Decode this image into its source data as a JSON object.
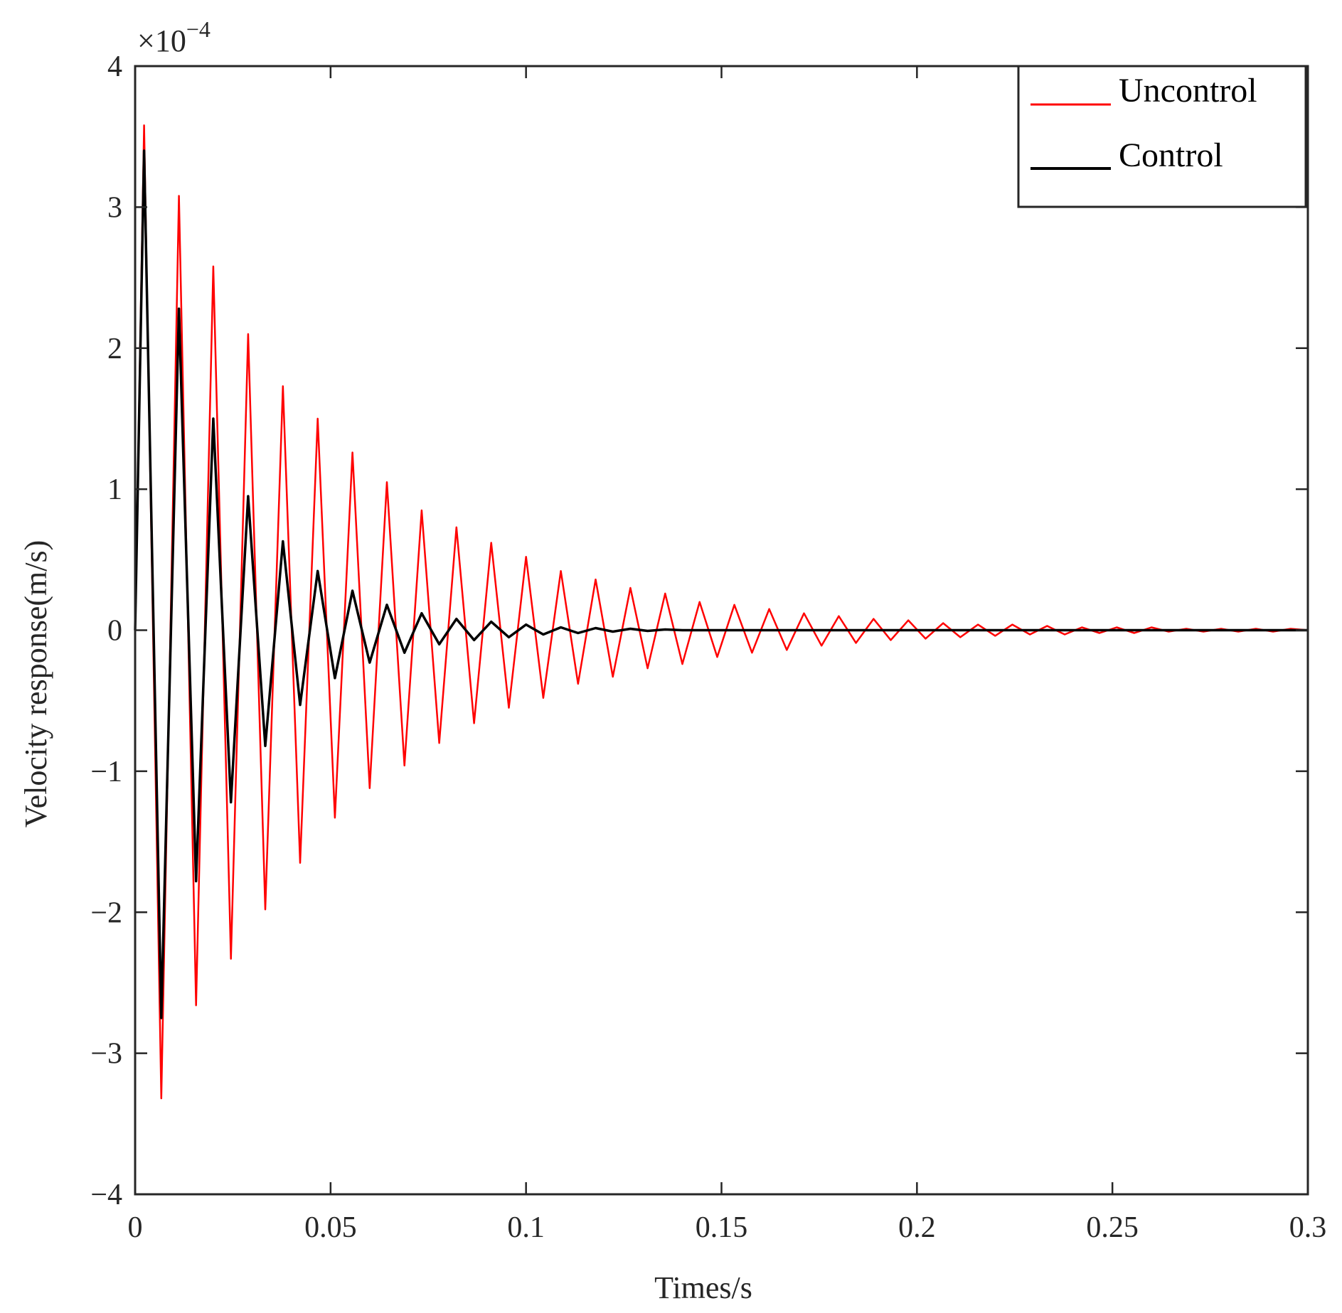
{
  "chart_data": {
    "type": "line",
    "xlabel": "Times/s",
    "ylabel": "Velocity response(m/s)",
    "xlim": [
      0,
      0.3
    ],
    "ylim": [
      -4,
      4
    ],
    "y_scale_factor_label": "×10",
    "y_scale_factor_exponent": "−4",
    "x_ticks": [
      "0",
      "0.05",
      "0.1",
      "0.15",
      "0.2",
      "0.25",
      "0.3"
    ],
    "x_tick_values": [
      0,
      0.05,
      0.1,
      0.15,
      0.2,
      0.25,
      0.3
    ],
    "y_ticks": [
      "−4",
      "−3",
      "−2",
      "−1",
      "0",
      "1",
      "2",
      "3",
      "4"
    ],
    "y_tick_values": [
      -4,
      -3,
      -2,
      -1,
      0,
      1,
      2,
      3,
      4
    ],
    "grid": false,
    "legend_position": "top-right",
    "colors": {
      "uncontrol": "#ff0000",
      "control": "#000000",
      "axes": "#262626"
    },
    "series": [
      {
        "name": "Uncontrol",
        "color": "#ff0000",
        "x": [
          0,
          0.0023,
          0.0067,
          0.0112,
          0.0156,
          0.02,
          0.0245,
          0.0289,
          0.0333,
          0.0378,
          0.0422,
          0.0467,
          0.0511,
          0.0556,
          0.06,
          0.0644,
          0.0689,
          0.0733,
          0.0778,
          0.0822,
          0.0867,
          0.0911,
          0.0956,
          0.1,
          0.1044,
          0.1089,
          0.1133,
          0.1178,
          0.1222,
          0.1267,
          0.1311,
          0.1356,
          0.14,
          0.1444,
          0.1489,
          0.1533,
          0.1578,
          0.1622,
          0.1667,
          0.1711,
          0.1756,
          0.18,
          0.1844,
          0.1889,
          0.1933,
          0.1978,
          0.2022,
          0.2067,
          0.2111,
          0.2156,
          0.22,
          0.2244,
          0.2289,
          0.2333,
          0.2378,
          0.2422,
          0.2467,
          0.2511,
          0.2556,
          0.26,
          0.2644,
          0.2689,
          0.2733,
          0.2778,
          0.2822,
          0.2867,
          0.2911,
          0.2956,
          0.3
        ],
        "y": [
          0,
          3.58,
          -3.32,
          3.08,
          -2.66,
          2.58,
          -2.33,
          2.1,
          -1.98,
          1.73,
          -1.65,
          1.5,
          -1.33,
          1.26,
          -1.12,
          1.05,
          -0.96,
          0.85,
          -0.8,
          0.73,
          -0.66,
          0.62,
          -0.55,
          0.52,
          -0.48,
          0.42,
          -0.38,
          0.36,
          -0.33,
          0.3,
          -0.27,
          0.26,
          -0.24,
          0.2,
          -0.19,
          0.18,
          -0.16,
          0.15,
          -0.14,
          0.12,
          -0.11,
          0.1,
          -0.09,
          0.08,
          -0.07,
          0.07,
          -0.06,
          0.05,
          -0.05,
          0.04,
          -0.04,
          0.04,
          -0.03,
          0.03,
          -0.03,
          0.02,
          -0.02,
          0.02,
          -0.02,
          0.02,
          -0.01,
          0.01,
          -0.01,
          0.01,
          -0.01,
          0.01,
          -0.01,
          0.01,
          0
        ]
      },
      {
        "name": "Control",
        "color": "#000000",
        "x": [
          0,
          0.0023,
          0.0067,
          0.0112,
          0.0156,
          0.02,
          0.0245,
          0.0289,
          0.0333,
          0.0378,
          0.0422,
          0.0467,
          0.0511,
          0.0556,
          0.06,
          0.0644,
          0.0689,
          0.0733,
          0.0778,
          0.0822,
          0.0867,
          0.0911,
          0.0956,
          0.1,
          0.1044,
          0.1089,
          0.1133,
          0.1178,
          0.1222,
          0.1267,
          0.1311,
          0.1356,
          0.14,
          0.15,
          0.2,
          0.25,
          0.3
        ],
        "y": [
          0,
          3.4,
          -2.75,
          2.28,
          -1.78,
          1.5,
          -1.22,
          0.95,
          -0.82,
          0.63,
          -0.53,
          0.42,
          -0.34,
          0.28,
          -0.23,
          0.18,
          -0.16,
          0.12,
          -0.1,
          0.08,
          -0.07,
          0.06,
          -0.05,
          0.04,
          -0.03,
          0.02,
          -0.02,
          0.015,
          -0.01,
          0.01,
          -0.005,
          0.005,
          0,
          0,
          0,
          0,
          0
        ]
      }
    ]
  }
}
